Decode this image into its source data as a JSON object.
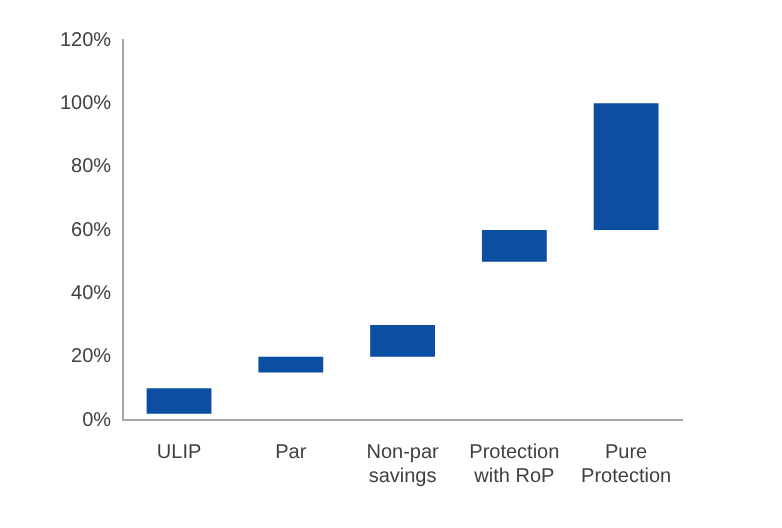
{
  "chart_data": {
    "type": "bar",
    "categories": [
      "ULIP",
      "Par",
      "Non-par savings",
      "Protection with RoP",
      "Pure Protection"
    ],
    "values": [
      8,
      5,
      10,
      10,
      40
    ],
    "base": [
      2,
      15,
      20,
      50,
      60
    ],
    "color": "#0b4ea2",
    "ylim": [
      0,
      120
    ],
    "yticks": [
      {
        "value": 0,
        "label": "0%"
      },
      {
        "value": 20,
        "label": "20%"
      },
      {
        "value": 40,
        "label": "40%"
      },
      {
        "value": 60,
        "label": "60%"
      },
      {
        "value": 80,
        "label": "80%"
      },
      {
        "value": 100,
        "label": "100%"
      },
      {
        "value": 120,
        "label": "120%"
      }
    ],
    "grid": false,
    "legend": false
  }
}
